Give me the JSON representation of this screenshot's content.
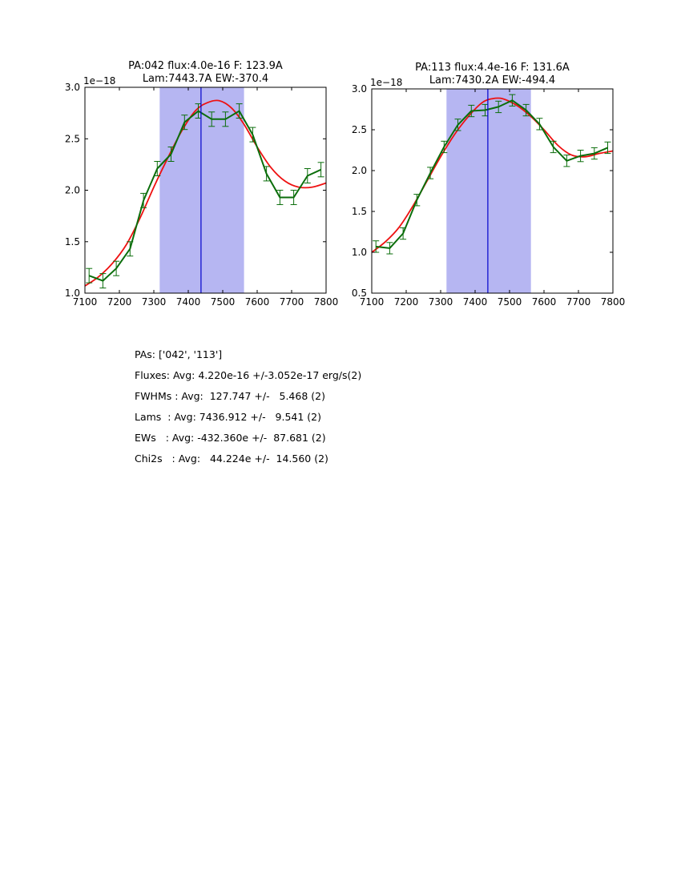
{
  "figure": {
    "background_color": "#ffffff",
    "text_color": "#000000"
  },
  "chart_data": [
    {
      "type": "line",
      "title": "PA:042 flux:4.0e-16 F: 123.9A",
      "subtitle": "Lam:7443.7A EW:-370.4",
      "offset_label": "1e−18",
      "xlim": [
        7100,
        7800
      ],
      "ylim": [
        1.0,
        3.0
      ],
      "xticks": [
        7100,
        7200,
        7300,
        7400,
        7500,
        7600,
        7700,
        7800
      ],
      "yticks": [
        1.0,
        1.5,
        2.0,
        2.5,
        3.0
      ],
      "grid": false,
      "legend": "none",
      "band": {
        "from": 7317,
        "to": 7562,
        "color": "#b6b6f2"
      },
      "vline": {
        "x": 7437,
        "color": "#0000cc"
      },
      "series": [
        {
          "name": "gaussian-fit",
          "color": "#ee1111",
          "style": "smooth",
          "width": 1.8,
          "x": [
            7100,
            7140,
            7180,
            7220,
            7260,
            7300,
            7340,
            7380,
            7420,
            7455,
            7490,
            7525,
            7560,
            7600,
            7640,
            7680,
            7720,
            7760,
            7800
          ],
          "y": [
            1.07,
            1.16,
            1.29,
            1.47,
            1.73,
            2.03,
            2.31,
            2.57,
            2.77,
            2.85,
            2.87,
            2.8,
            2.65,
            2.42,
            2.22,
            2.09,
            2.03,
            2.03,
            2.07
          ]
        },
        {
          "name": "spectrum-data",
          "color": "#0b6e0b",
          "style": "polyline",
          "width": 2,
          "yerr": 0.07,
          "x": [
            7112,
            7152,
            7191,
            7231,
            7270,
            7310,
            7350,
            7389,
            7429,
            7468,
            7508,
            7548,
            7587,
            7627,
            7666,
            7706,
            7746,
            7785
          ],
          "y": [
            1.17,
            1.12,
            1.24,
            1.43,
            1.9,
            2.21,
            2.35,
            2.66,
            2.77,
            2.69,
            2.69,
            2.77,
            2.54,
            2.16,
            1.93,
            1.93,
            2.14,
            2.2
          ]
        }
      ]
    },
    {
      "type": "line",
      "title": "PA:113 flux:4.4e-16 F: 131.6A",
      "subtitle": "Lam:7430.2A EW:-494.4",
      "offset_label": "1e−18",
      "xlim": [
        7100,
        7800
      ],
      "ylim": [
        0.5,
        3.0
      ],
      "xticks": [
        7100,
        7200,
        7300,
        7400,
        7500,
        7600,
        7700,
        7800
      ],
      "yticks": [
        0.5,
        1.0,
        1.5,
        2.0,
        2.5,
        3.0
      ],
      "grid": false,
      "legend": "none",
      "band": {
        "from": 7317,
        "to": 7562,
        "color": "#b6b6f2"
      },
      "vline": {
        "x": 7437,
        "color": "#0000cc"
      },
      "series": [
        {
          "name": "gaussian-fit",
          "color": "#ee1111",
          "style": "smooth",
          "width": 1.8,
          "x": [
            7100,
            7140,
            7180,
            7220,
            7260,
            7300,
            7340,
            7380,
            7420,
            7450,
            7480,
            7520,
            7560,
            7600,
            7640,
            7680,
            7720,
            7760,
            7800
          ],
          "y": [
            1.0,
            1.13,
            1.31,
            1.57,
            1.87,
            2.17,
            2.44,
            2.66,
            2.83,
            2.88,
            2.88,
            2.8,
            2.67,
            2.5,
            2.31,
            2.19,
            2.17,
            2.21,
            2.24
          ]
        },
        {
          "name": "spectrum-data",
          "color": "#0b6e0b",
          "style": "polyline",
          "width": 2,
          "yerr": 0.07,
          "x": [
            7112,
            7152,
            7191,
            7231,
            7270,
            7310,
            7350,
            7389,
            7429,
            7468,
            7508,
            7548,
            7587,
            7627,
            7666,
            7706,
            7746,
            7785
          ],
          "y": [
            1.07,
            1.05,
            1.23,
            1.64,
            1.97,
            2.29,
            2.56,
            2.73,
            2.74,
            2.78,
            2.86,
            2.74,
            2.57,
            2.29,
            2.12,
            2.18,
            2.21,
            2.28
          ]
        }
      ]
    }
  ],
  "stats": {
    "lines": [
      "PAs: ['042', '113']",
      "Fluxes: Avg: 4.220e-16 +/-3.052e-17 erg/s(2)",
      "FWHMs : Avg:  127.747 +/-   5.468 (2)",
      "Lams  : Avg: 7436.912 +/-   9.541 (2)",
      "EWs   : Avg: -432.360e +/-  87.681 (2)",
      "Chi2s   : Avg:   44.224e +/-  14.560 (2)"
    ]
  }
}
